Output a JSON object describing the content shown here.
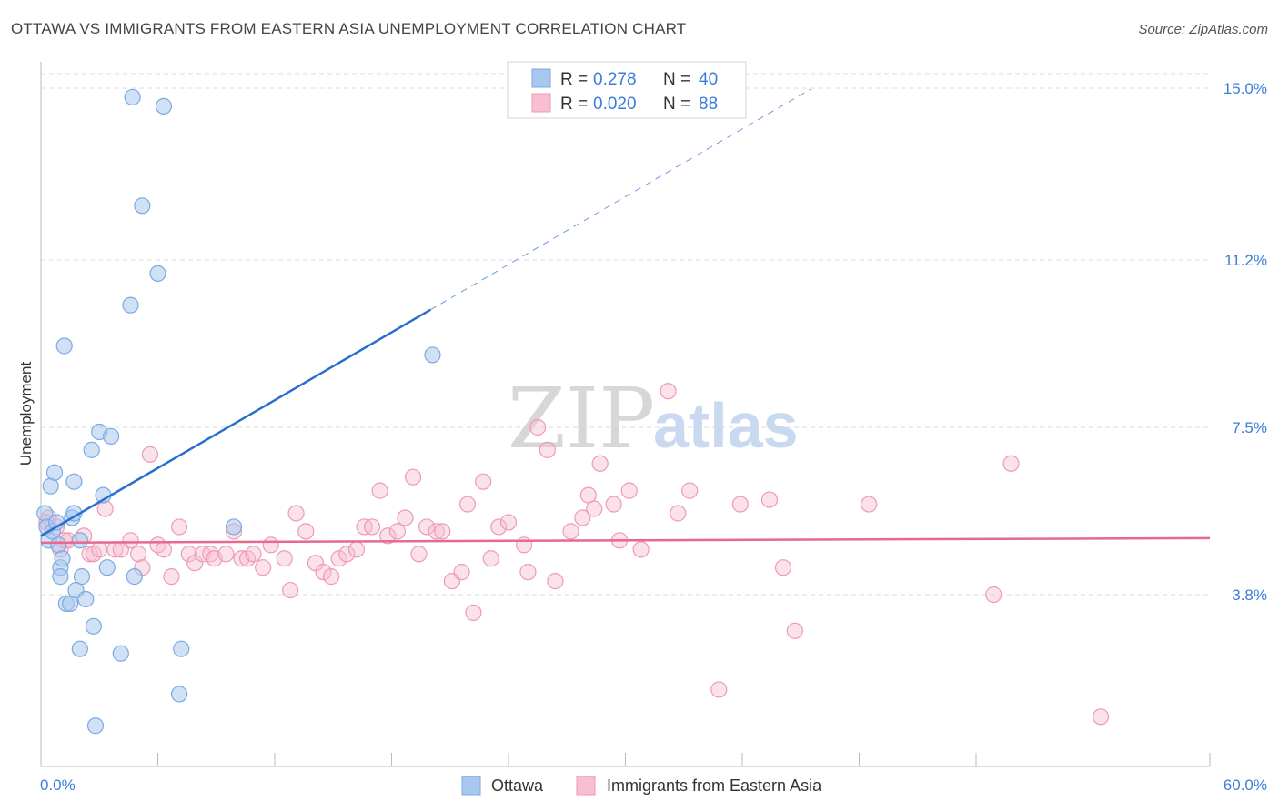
{
  "title": "OTTAWA VS IMMIGRANTS FROM EASTERN ASIA UNEMPLOYMENT CORRELATION CHART",
  "source": "Source: ZipAtlas.com",
  "watermark": {
    "zip": "ZIP",
    "atlas": "atlas"
  },
  "colors": {
    "blue_fill": "#a9c8ef",
    "blue_stroke": "#7aaae3",
    "blue_line": "#2a6fcf",
    "pink_fill": "#f7bfd1",
    "pink_stroke": "#ee9ab6",
    "pink_line": "#e8698f",
    "axis_text": "#3b7dd8",
    "grid": "#dcdcdc"
  },
  "chart_data": {
    "type": "scatter",
    "ylabel": "Unemployment",
    "xlim": [
      0,
      60
    ],
    "ylim": [
      0,
      15.5
    ],
    "x_tick_labels": [
      {
        "value": 0,
        "label": "0.0%"
      },
      {
        "value": 60,
        "label": "60.0%"
      }
    ],
    "y_tick_labels": [
      {
        "value": 3.8,
        "label": "3.8%"
      },
      {
        "value": 7.5,
        "label": "7.5%"
      },
      {
        "value": 11.2,
        "label": "11.2%"
      },
      {
        "value": 15.0,
        "label": "15.0%"
      }
    ],
    "legend": {
      "r_label": "R =",
      "n_label": "N =",
      "entries": [
        {
          "name": "Ottawa",
          "r": "0.278",
          "n": "40"
        },
        {
          "name": "Immigrants from Eastern Asia",
          "r": "0.020",
          "n": "88"
        }
      ]
    },
    "series": [
      {
        "name": "Ottawa",
        "trend": {
          "x0": 0,
          "y0": 5.1,
          "x1": 20,
          "y1": 10.1,
          "dash_to_x": 39.5
        },
        "points": [
          [
            0.2,
            5.6
          ],
          [
            0.3,
            5.3
          ],
          [
            0.4,
            5.0
          ],
          [
            0.5,
            6.2
          ],
          [
            0.6,
            5.2
          ],
          [
            0.7,
            6.5
          ],
          [
            0.8,
            5.4
          ],
          [
            0.9,
            4.9
          ],
          [
            1.0,
            4.4
          ],
          [
            1.0,
            4.2
          ],
          [
            1.1,
            4.6
          ],
          [
            1.2,
            9.3
          ],
          [
            1.3,
            3.6
          ],
          [
            1.5,
            3.6
          ],
          [
            1.6,
            5.5
          ],
          [
            1.7,
            5.6
          ],
          [
            1.7,
            6.3
          ],
          [
            1.8,
            3.9
          ],
          [
            2.0,
            5.0
          ],
          [
            2.0,
            2.6
          ],
          [
            2.1,
            4.2
          ],
          [
            2.3,
            3.7
          ],
          [
            2.6,
            7.0
          ],
          [
            2.7,
            3.1
          ],
          [
            2.8,
            0.9
          ],
          [
            3.0,
            7.4
          ],
          [
            3.2,
            6.0
          ],
          [
            3.4,
            4.4
          ],
          [
            3.6,
            7.3
          ],
          [
            4.1,
            2.5
          ],
          [
            4.6,
            10.2
          ],
          [
            4.7,
            14.8
          ],
          [
            4.8,
            4.2
          ],
          [
            5.2,
            12.4
          ],
          [
            6.0,
            10.9
          ],
          [
            6.3,
            14.6
          ],
          [
            7.1,
            1.6
          ],
          [
            7.2,
            2.6
          ],
          [
            9.9,
            5.3
          ],
          [
            20.1,
            9.1
          ]
        ]
      },
      {
        "name": "Immigrants from Eastern Asia",
        "trend": {
          "x0": 0,
          "y0": 4.95,
          "x1": 60,
          "y1": 5.05
        },
        "points": [
          [
            0.4,
            5.5
          ],
          [
            0.8,
            5.3
          ],
          [
            1.0,
            4.8
          ],
          [
            1.2,
            5.0
          ],
          [
            1.4,
            5.0
          ],
          [
            2.2,
            5.1
          ],
          [
            2.5,
            4.7
          ],
          [
            2.7,
            4.7
          ],
          [
            3.0,
            4.8
          ],
          [
            3.3,
            5.7
          ],
          [
            3.8,
            4.8
          ],
          [
            4.1,
            4.8
          ],
          [
            4.6,
            5.0
          ],
          [
            5.0,
            4.7
          ],
          [
            5.2,
            4.4
          ],
          [
            5.6,
            6.9
          ],
          [
            6.0,
            4.9
          ],
          [
            6.3,
            4.8
          ],
          [
            6.7,
            4.2
          ],
          [
            7.1,
            5.3
          ],
          [
            7.6,
            4.7
          ],
          [
            7.9,
            4.5
          ],
          [
            8.3,
            4.7
          ],
          [
            8.7,
            4.7
          ],
          [
            8.9,
            4.6
          ],
          [
            9.5,
            4.7
          ],
          [
            9.9,
            5.2
          ],
          [
            10.3,
            4.6
          ],
          [
            10.6,
            4.6
          ],
          [
            10.9,
            4.7
          ],
          [
            11.4,
            4.4
          ],
          [
            11.8,
            4.9
          ],
          [
            12.5,
            4.6
          ],
          [
            12.8,
            3.9
          ],
          [
            13.1,
            5.6
          ],
          [
            13.6,
            5.2
          ],
          [
            14.1,
            4.5
          ],
          [
            14.5,
            4.3
          ],
          [
            14.9,
            4.2
          ],
          [
            15.3,
            4.6
          ],
          [
            15.7,
            4.7
          ],
          [
            16.2,
            4.8
          ],
          [
            16.6,
            5.3
          ],
          [
            17.0,
            5.3
          ],
          [
            17.4,
            6.1
          ],
          [
            17.8,
            5.1
          ],
          [
            18.3,
            5.2
          ],
          [
            18.7,
            5.5
          ],
          [
            19.1,
            6.4
          ],
          [
            19.4,
            4.7
          ],
          [
            19.8,
            5.3
          ],
          [
            20.3,
            5.2
          ],
          [
            20.6,
            5.2
          ],
          [
            21.1,
            4.1
          ],
          [
            21.6,
            4.3
          ],
          [
            21.9,
            5.8
          ],
          [
            22.2,
            3.4
          ],
          [
            22.7,
            6.3
          ],
          [
            23.1,
            4.6
          ],
          [
            23.5,
            5.3
          ],
          [
            24.0,
            5.4
          ],
          [
            24.8,
            4.9
          ],
          [
            25.0,
            4.3
          ],
          [
            25.5,
            7.5
          ],
          [
            26.0,
            7.0
          ],
          [
            26.4,
            4.1
          ],
          [
            27.2,
            5.2
          ],
          [
            27.8,
            5.5
          ],
          [
            28.1,
            6.0
          ],
          [
            28.4,
            5.7
          ],
          [
            28.7,
            6.7
          ],
          [
            29.4,
            5.8
          ],
          [
            29.7,
            5.0
          ],
          [
            30.2,
            6.1
          ],
          [
            30.8,
            4.8
          ],
          [
            32.2,
            8.3
          ],
          [
            32.7,
            5.6
          ],
          [
            33.3,
            6.1
          ],
          [
            34.8,
            1.7
          ],
          [
            35.9,
            5.8
          ],
          [
            37.4,
            5.9
          ],
          [
            38.1,
            4.4
          ],
          [
            38.7,
            3.0
          ],
          [
            42.5,
            5.8
          ],
          [
            48.9,
            3.8
          ],
          [
            49.8,
            6.7
          ],
          [
            54.4,
            1.1
          ],
          [
            0.3,
            5.4
          ]
        ]
      }
    ]
  }
}
